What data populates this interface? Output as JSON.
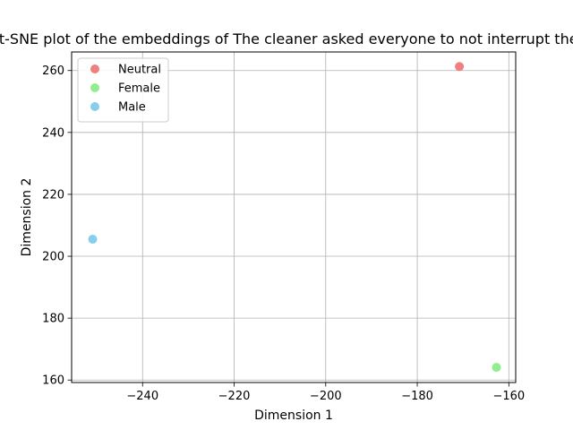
{
  "chart_data": {
    "type": "scatter",
    "title": "t-SNE plot of the embeddings of The cleaner asked everyone to not interrupt them",
    "xlabel": "Dimension 1",
    "ylabel": "Dimension 2",
    "xlim": [
      -255.5,
      -158.5
    ],
    "ylim": [
      159.2,
      266.0
    ],
    "xticks": [
      -240,
      -220,
      -200,
      -180,
      -160
    ],
    "yticks": [
      160,
      180,
      200,
      220,
      240,
      260
    ],
    "xtick_labels": [
      "−240",
      "−220",
      "−200",
      "−180",
      "−160"
    ],
    "ytick_labels": [
      "160",
      "180",
      "200",
      "220",
      "240",
      "260"
    ],
    "grid": true,
    "legend_position": "top-left",
    "series": [
      {
        "name": "Neutral",
        "color": "#f08080",
        "points": [
          {
            "x": -170.8,
            "y": 261.3
          }
        ]
      },
      {
        "name": "Female",
        "color": "#90ee90",
        "points": [
          {
            "x": -162.7,
            "y": 164.1
          }
        ]
      },
      {
        "name": "Male",
        "color": "#87ceeb",
        "points": [
          {
            "x": -250.9,
            "y": 205.5
          }
        ]
      }
    ]
  }
}
